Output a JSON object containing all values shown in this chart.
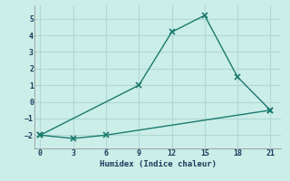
{
  "xlabel": "Humidex (Indice chaleur)",
  "line1_x": [
    0,
    9,
    12,
    15,
    18,
    21
  ],
  "line1_y": [
    -2,
    1,
    4.2,
    5.2,
    1.5,
    -0.5
  ],
  "line2_x": [
    0,
    3,
    6,
    21
  ],
  "line2_y": [
    -2,
    -2.2,
    -2,
    -0.5
  ],
  "color": "#1a7a6e",
  "bg_color": "#cceee8",
  "grid_color": "#b0d8d4",
  "xlim": [
    -0.5,
    22
  ],
  "ylim": [
    -2.8,
    5.8
  ],
  "xticks": [
    0,
    3,
    6,
    9,
    12,
    15,
    18,
    21
  ],
  "yticks": [
    -2,
    -1,
    0,
    1,
    2,
    3,
    4,
    5
  ],
  "marker": "x",
  "markersize": 5,
  "linewidth": 1.0
}
